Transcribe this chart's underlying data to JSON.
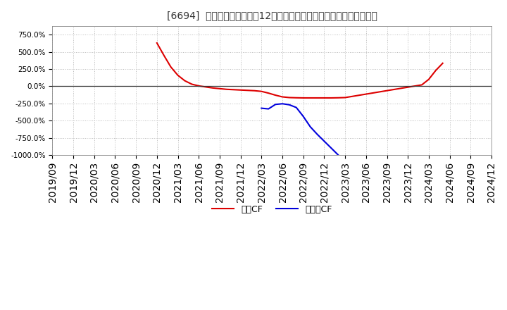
{
  "title": "[6694]  キャッシュフローの12か月移動合計の対前年同期増減率の推移",
  "background_color": "#ffffff",
  "plot_background_color": "#ffffff",
  "grid_color": "#bbbbbb",
  "ylim": [
    -1000,
    875
  ],
  "yticks": [
    -1000,
    -750,
    -500,
    -250,
    0,
    250,
    500,
    750
  ],
  "xtick_labels": [
    "2019/09",
    "2019/12",
    "2020/03",
    "2020/06",
    "2020/09",
    "2020/12",
    "2021/03",
    "2021/06",
    "2021/09",
    "2021/12",
    "2022/03",
    "2022/06",
    "2022/09",
    "2022/12",
    "2023/03",
    "2023/06",
    "2023/09",
    "2023/12",
    "2024/03",
    "2024/06",
    "2024/09",
    "2024/12"
  ],
  "operating_cf": {
    "label": "営業CF",
    "color": "#dd0000",
    "x_months_from_201909": [
      15,
      16,
      17,
      18,
      19,
      20,
      21,
      22,
      23,
      24,
      25,
      26,
      27,
      28,
      29,
      30,
      31,
      32,
      33,
      34,
      35,
      36,
      37,
      38,
      39,
      40,
      41,
      42,
      53,
      54,
      55,
      56
    ],
    "y": [
      630,
      450,
      280,
      160,
      80,
      30,
      5,
      -10,
      -25,
      -35,
      -45,
      -50,
      -55,
      -60,
      -65,
      -75,
      -100,
      -130,
      -155,
      -165,
      -168,
      -170,
      -170,
      -170,
      -170,
      -170,
      -168,
      -165,
      20,
      100,
      230,
      335
    ]
  },
  "free_cf": {
    "label": "フリーCF",
    "color": "#0000dd",
    "x_months_from_201909": [
      30,
      31,
      32,
      33,
      34,
      35,
      36,
      37,
      38,
      41
    ],
    "y": [
      -320,
      -330,
      -265,
      -255,
      -270,
      -310,
      -440,
      -590,
      -700,
      -1000
    ]
  }
}
